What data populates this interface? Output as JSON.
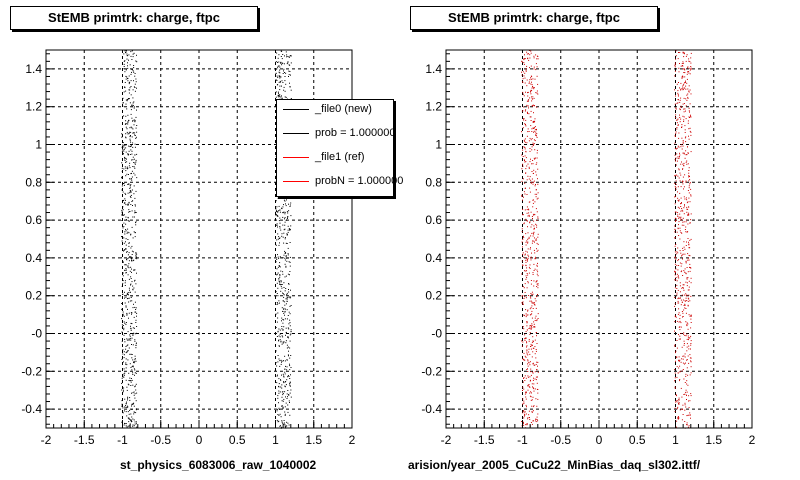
{
  "panels": [
    {
      "title": "StEMB primtrk: charge, ftpc",
      "caption": "st_physics_6083006_raw_1040002"
    },
    {
      "title": "StEMB primtrk: charge, ftpc",
      "caption": "arision/year_2005_CuCu22_MinBias_daq_sl302.ittf/"
    }
  ],
  "legend": {
    "entries": [
      {
        "label": "_file0 (new)",
        "color": "#000000"
      },
      {
        "label": "prob = 1.000000",
        "color": "#000000"
      },
      {
        "label": "_file1 (ref)",
        "color": "#ff0000"
      },
      {
        "label": "probN = 1.000000",
        "color": "#ff0000"
      }
    ]
  },
  "chart_data": [
    {
      "type": "scatter",
      "title": "StEMB primtrk: charge, ftpc",
      "xlabel": "st_physics_6083006_raw_1040002",
      "ylabel": "",
      "xlim": [
        -2,
        2
      ],
      "ylim": [
        -0.5,
        1.5
      ],
      "xticks": [
        "-2",
        "-1.5",
        "-1",
        "-0.5",
        "0",
        "0.5",
        "1",
        "1.5",
        "2"
      ],
      "yticks": [
        "-0.4",
        "-0.2",
        "-0",
        "0.2",
        "0.4",
        "0.6",
        "0.8",
        "1",
        "1.2",
        "1.4"
      ],
      "grid": true,
      "legend_position": "top-right",
      "series": [
        {
          "color": "#000000",
          "bands": [
            {
              "x": [
                -1.02,
                -0.82
              ],
              "y": [
                -0.5,
                1.5
              ]
            },
            {
              "x": [
                1.0,
                1.2
              ],
              "y": [
                -0.5,
                1.5
              ]
            }
          ]
        }
      ]
    },
    {
      "type": "scatter",
      "title": "StEMB primtrk: charge, ftpc",
      "xlabel": "arision/year_2005_CuCu22_MinBias_daq_sl302.ittf/",
      "ylabel": "",
      "xlim": [
        -2,
        2
      ],
      "ylim": [
        -0.5,
        1.5
      ],
      "xticks": [
        "-2",
        "-1.5",
        "-1",
        "-0.5",
        "0",
        "0.5",
        "1",
        "1.5",
        "2"
      ],
      "yticks": [
        "-0.4",
        "-0.2",
        "-0",
        "0.2",
        "0.4",
        "0.6",
        "0.8",
        "1",
        "1.2",
        "1.4"
      ],
      "grid": true,
      "series": [
        {
          "color": "#cc0000",
          "bands": [
            {
              "x": [
                -1.02,
                -0.8
              ],
              "y": [
                -0.5,
                1.5
              ]
            },
            {
              "x": [
                0.98,
                1.2
              ],
              "y": [
                -0.5,
                1.5
              ]
            }
          ]
        }
      ]
    }
  ]
}
